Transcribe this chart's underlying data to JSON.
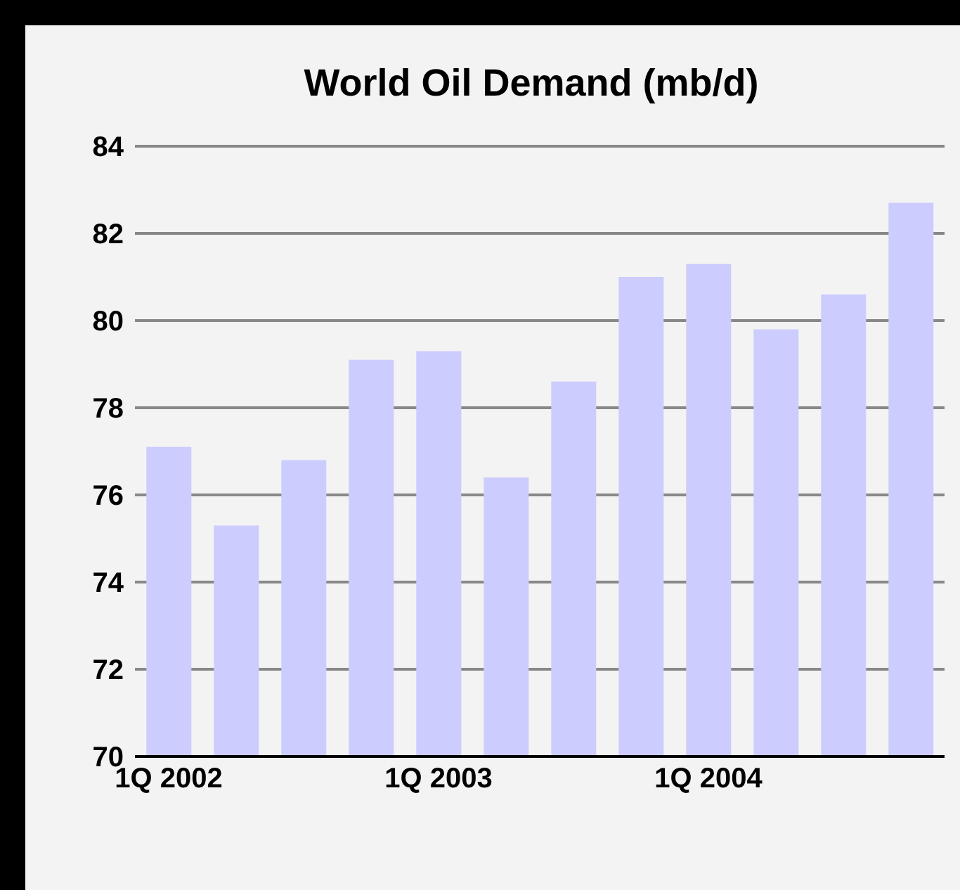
{
  "chart_data": {
    "type": "bar",
    "title": "World Oil Demand (mb/d)",
    "categories": [
      "1Q 2002",
      null,
      null,
      null,
      "1Q 2003",
      null,
      null,
      null,
      "1Q 2004",
      null,
      null,
      null
    ],
    "values": [
      77.1,
      75.3,
      76.8,
      79.1,
      79.3,
      76.4,
      78.6,
      81.0,
      81.3,
      79.8,
      80.6,
      82.7
    ],
    "color": "#ccccff",
    "ylim": [
      70,
      84
    ],
    "yticks": [
      70,
      72,
      74,
      76,
      78,
      80,
      82,
      84
    ],
    "grid": "y"
  }
}
